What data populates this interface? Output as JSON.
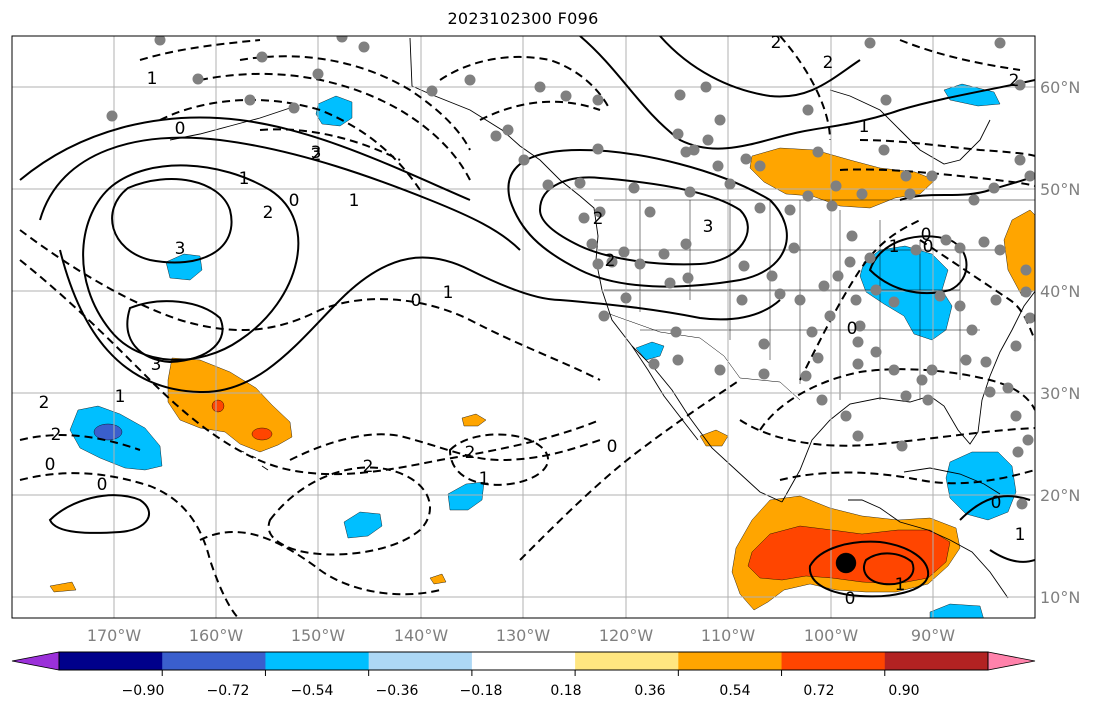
{
  "title": "2023102300 F096",
  "lon_labels": [
    "170°W",
    "160°W",
    "150°W",
    "140°W",
    "130°W",
    "120°W",
    "110°W",
    "100°W",
    "90°W"
  ],
  "lat_labels": [
    "60°N",
    "50°N",
    "40°N",
    "30°N",
    "20°N",
    "10°N"
  ],
  "colorbar": {
    "colors": [
      "#9b30d9",
      "#00008b",
      "#3a5fcd",
      "#00bfff",
      "#add8f5",
      "#ffffff",
      "#ffe680",
      "#ffa500",
      "#ff4500",
      "#b22222",
      "#ff82ab"
    ],
    "tick_labels": [
      "−0.90",
      "−0.72",
      "−0.54",
      "−0.36",
      "−0.18",
      "0.18",
      "0.36",
      "0.54",
      "0.72",
      "0.90"
    ]
  },
  "contour_labels": [
    "0",
    "3",
    "1",
    "2",
    "0",
    "1",
    "3",
    "2",
    "0",
    "1",
    "0",
    "2",
    "1",
    "3",
    "3",
    "2",
    "1",
    "2",
    "2",
    "1",
    "2",
    "0",
    "0",
    "2",
    "2",
    "0",
    "0",
    "0",
    "1",
    "0",
    "2",
    "1",
    "2",
    "1",
    "0",
    "1"
  ]
}
